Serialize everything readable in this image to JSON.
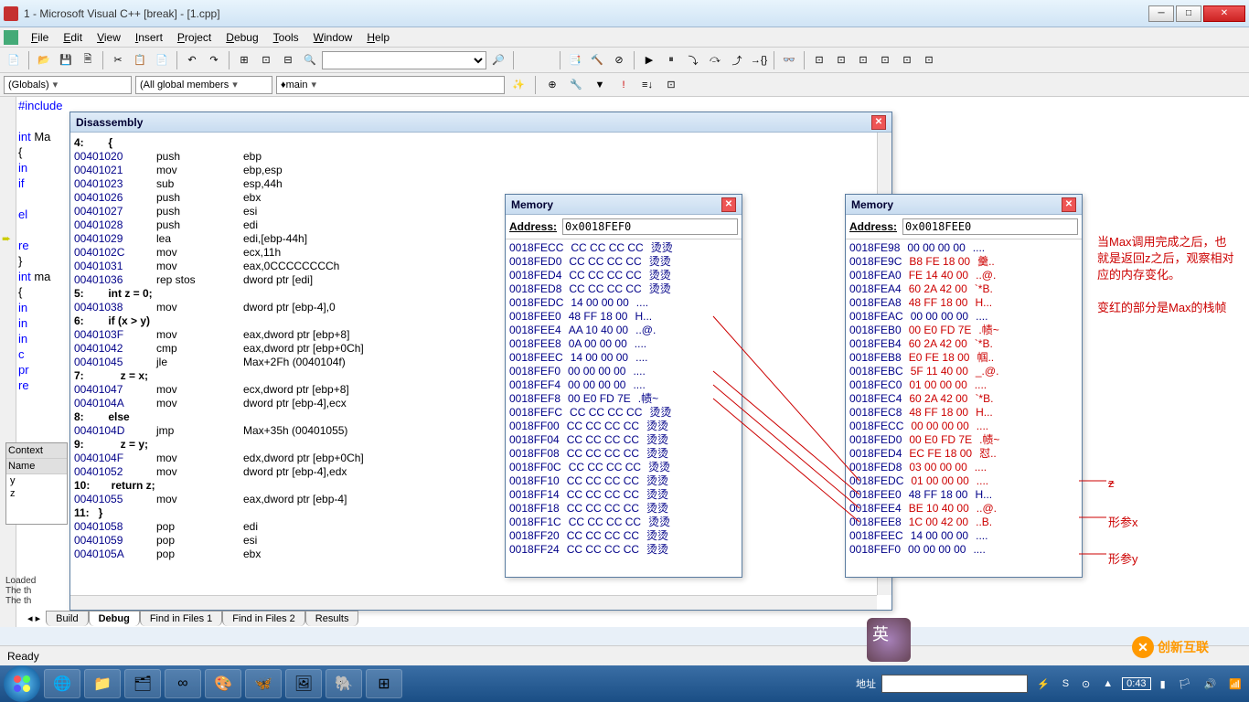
{
  "window": {
    "title": "1 - Microsoft Visual C++ [break] - [1.cpp]"
  },
  "menu": {
    "items": [
      "File",
      "Edit",
      "View",
      "Insert",
      "Project",
      "Debug",
      "Tools",
      "Window",
      "Help"
    ]
  },
  "combos": {
    "scope": "(Globals)",
    "members": "(All global members",
    "func": "main"
  },
  "code_bg": [
    "#include<stdio.h>",
    "",
    "int Ma",
    "{",
    "    in",
    "    if",
    "",
    "    el",
    "",
    "    re",
    "}",
    "int ma",
    "{",
    "    in",
    "    in",
    "    in",
    "    c",
    "    pr",
    "    re"
  ],
  "disassembly": {
    "title": "Disassembly",
    "lines": [
      {
        "src": "4:        {"
      },
      {
        "addr": "00401020",
        "op": "push",
        "arg": "ebp"
      },
      {
        "addr": "00401021",
        "op": "mov",
        "arg": "ebp,esp"
      },
      {
        "addr": "00401023",
        "op": "sub",
        "arg": "esp,44h"
      },
      {
        "addr": "00401026",
        "op": "push",
        "arg": "ebx"
      },
      {
        "addr": "00401027",
        "op": "push",
        "arg": "esi"
      },
      {
        "addr": "00401028",
        "op": "push",
        "arg": "edi"
      },
      {
        "addr": "00401029",
        "op": "lea",
        "arg": "edi,[ebp-44h]"
      },
      {
        "addr": "0040102C",
        "op": "mov",
        "arg": "ecx,11h"
      },
      {
        "addr": "00401031",
        "op": "mov",
        "arg": "eax,0CCCCCCCCh"
      },
      {
        "addr": "00401036",
        "op": "rep stos",
        "arg": "dword ptr [edi]"
      },
      {
        "src": "5:        int z = 0;"
      },
      {
        "addr": "00401038",
        "op": "mov",
        "arg": "dword ptr [ebp-4],0"
      },
      {
        "src": "6:        if (x > y)"
      },
      {
        "addr": "0040103F",
        "op": "mov",
        "arg": "eax,dword ptr [ebp+8]"
      },
      {
        "addr": "00401042",
        "op": "cmp",
        "arg": "eax,dword ptr [ebp+0Ch]"
      },
      {
        "addr": "00401045",
        "op": "jle",
        "arg": "Max+2Fh (0040104f)"
      },
      {
        "src": "7:            z = x;"
      },
      {
        "addr": "00401047",
        "op": "mov",
        "arg": "ecx,dword ptr [ebp+8]"
      },
      {
        "addr": "0040104A",
        "op": "mov",
        "arg": "dword ptr [ebp-4],ecx"
      },
      {
        "src": "8:        else"
      },
      {
        "addr": "0040104D",
        "op": "jmp",
        "arg": "Max+35h (00401055)"
      },
      {
        "src": "9:            z = y;"
      },
      {
        "addr": "0040104F",
        "op": "mov",
        "arg": "edx,dword ptr [ebp+0Ch]"
      },
      {
        "addr": "00401052",
        "op": "mov",
        "arg": "dword ptr [ebp-4],edx"
      },
      {
        "src": "10:       return z;"
      },
      {
        "addr": "00401055",
        "op": "mov",
        "arg": "eax,dword ptr [ebp-4]",
        "cur": true
      },
      {
        "src": "11:   }"
      },
      {
        "addr": "00401058",
        "op": "pop",
        "arg": "edi"
      },
      {
        "addr": "00401059",
        "op": "pop",
        "arg": "esi"
      },
      {
        "addr": "0040105A",
        "op": "pop",
        "arg": "ebx"
      }
    ]
  },
  "memory1": {
    "title": "Memory",
    "address_label": "Address:",
    "address": "0x0018FEF0",
    "rows": [
      {
        "a": "0018FECC",
        "b": "CC CC CC CC",
        "c": "烫烫"
      },
      {
        "a": "0018FED0",
        "b": "CC CC CC CC",
        "c": "烫烫"
      },
      {
        "a": "0018FED4",
        "b": "CC CC CC CC",
        "c": "烫烫"
      },
      {
        "a": "0018FED8",
        "b": "CC CC CC CC",
        "c": "烫烫"
      },
      {
        "a": "0018FEDC",
        "b": "14 00 00 00",
        "c": "...."
      },
      {
        "a": "0018FEE0",
        "b": "48 FF 18 00",
        "c": "H..."
      },
      {
        "a": "0018FEE4",
        "b": "AA 10 40 00",
        "c": "..@."
      },
      {
        "a": "0018FEE8",
        "b": "0A 00 00 00",
        "c": "...."
      },
      {
        "a": "0018FEEC",
        "b": "14 00 00 00",
        "c": "...."
      },
      {
        "a": "0018FEF0",
        "b": "00 00 00 00",
        "c": "...."
      },
      {
        "a": "0018FEF4",
        "b": "00 00 00 00",
        "c": "...."
      },
      {
        "a": "0018FEF8",
        "b": "00 E0 FD 7E",
        "c": ".帻~"
      },
      {
        "a": "0018FEFC",
        "b": "CC CC CC CC",
        "c": "烫烫"
      },
      {
        "a": "0018FF00",
        "b": "CC CC CC CC",
        "c": "烫烫"
      },
      {
        "a": "0018FF04",
        "b": "CC CC CC CC",
        "c": "烫烫"
      },
      {
        "a": "0018FF08",
        "b": "CC CC CC CC",
        "c": "烫烫"
      },
      {
        "a": "0018FF0C",
        "b": "CC CC CC CC",
        "c": "烫烫"
      },
      {
        "a": "0018FF10",
        "b": "CC CC CC CC",
        "c": "烫烫"
      },
      {
        "a": "0018FF14",
        "b": "CC CC CC CC",
        "c": "烫烫"
      },
      {
        "a": "0018FF18",
        "b": "CC CC CC CC",
        "c": "烫烫"
      },
      {
        "a": "0018FF1C",
        "b": "CC CC CC CC",
        "c": "烫烫"
      },
      {
        "a": "0018FF20",
        "b": "CC CC CC CC",
        "c": "烫烫"
      },
      {
        "a": "0018FF24",
        "b": "CC CC CC CC",
        "c": "烫烫"
      }
    ]
  },
  "memory2": {
    "title": "Memory",
    "address_label": "Address:",
    "address": "0x0018FEE0",
    "rows": [
      {
        "a": "0018FE98",
        "b": "00 00 00 00",
        "c": "....",
        "red": false
      },
      {
        "a": "0018FE9C",
        "b": "B8 FE 18 00",
        "c": "羹..",
        "red": true
      },
      {
        "a": "0018FEA0",
        "b": "FE 14 40 00",
        "c": "..@.",
        "red": true
      },
      {
        "a": "0018FEA4",
        "b": "60 2A 42 00",
        "c": "`*B.",
        "red": true
      },
      {
        "a": "0018FEA8",
        "b": "48 FF 18 00",
        "c": "H...",
        "red": true
      },
      {
        "a": "0018FEAC",
        "b": "00 00 00 00",
        "c": "....",
        "red": false
      },
      {
        "a": "0018FEB0",
        "b": "00 E0 FD 7E",
        "c": ".帻~",
        "red": true
      },
      {
        "a": "0018FEB4",
        "b": "60 2A 42 00",
        "c": "`*B.",
        "red": true
      },
      {
        "a": "0018FEB8",
        "b": "E0 FE 18 00",
        "c": "帼..",
        "red": true
      },
      {
        "a": "0018FEBC",
        "b": "5F 11 40 00",
        "c": "_.@.",
        "red": true
      },
      {
        "a": "0018FEC0",
        "b": "01 00 00 00",
        "c": "....",
        "red": true
      },
      {
        "a": "0018FEC4",
        "b": "60 2A 42 00",
        "c": "`*B.",
        "red": true
      },
      {
        "a": "0018FEC8",
        "b": "48 FF 18 00",
        "c": "H...",
        "red": true
      },
      {
        "a": "0018FECC",
        "b": "00 00 00 00",
        "c": "....",
        "red": true
      },
      {
        "a": "0018FED0",
        "b": "00 E0 FD 7E",
        "c": ".帻~",
        "red": true
      },
      {
        "a": "0018FED4",
        "b": "EC FE 18 00",
        "c": "怼..",
        "red": true
      },
      {
        "a": "0018FED8",
        "b": "03 00 00 00",
        "c": "....",
        "red": true
      },
      {
        "a": "0018FEDC",
        "b": "01 00 00 00",
        "c": "....",
        "red": true
      },
      {
        "a": "0018FEE0",
        "b": "48 FF 18 00",
        "c": "H...",
        "red": false
      },
      {
        "a": "0018FEE4",
        "b": "BE 10 40 00",
        "c": "..@.",
        "red": true
      },
      {
        "a": "0018FEE8",
        "b": "1C 00 42 00",
        "c": "..B.",
        "red": true
      },
      {
        "a": "0018FEEC",
        "b": "14 00 00 00",
        "c": "....",
        "red": false
      },
      {
        "a": "0018FEF0",
        "b": "00 00 00 00",
        "c": "....",
        "red": false
      }
    ]
  },
  "annotations": {
    "main": "当Max调用完成之后，也就是返回z之后，观察相对应的内存变化。\n\n变红的部分是Max的栈帧",
    "z": "z",
    "x": "形参x",
    "y": "形参y"
  },
  "context": {
    "title": "Context",
    "name_hdr": "Name",
    "vars": [
      "y",
      "z"
    ]
  },
  "output": {
    "lines": [
      "Loaded",
      "The th",
      "The th"
    ]
  },
  "tabs": {
    "items": [
      "Build",
      "Debug",
      "Find in Files 1",
      "Find in Files 2",
      "Results"
    ],
    "active": 1
  },
  "status": {
    "text": "Ready"
  },
  "taskbar": {
    "addr_label": "地址",
    "time": "0:43"
  },
  "logo": "创新互联"
}
